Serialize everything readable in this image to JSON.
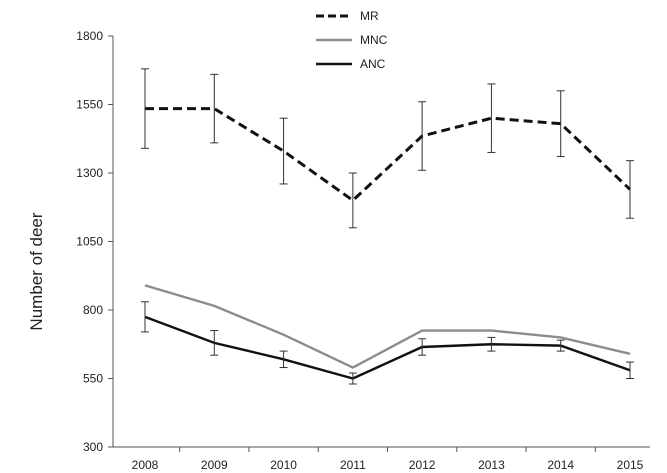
{
  "chart_data": {
    "type": "line",
    "title": "",
    "xlabel": "",
    "ylabel": "Number of deer",
    "ylim": [
      300,
      1800
    ],
    "yticks": [
      300,
      550,
      800,
      1050,
      1300,
      1550,
      1800
    ],
    "categories": [
      "2008",
      "2009",
      "2010",
      "2011",
      "2012",
      "2013",
      "2014",
      "2015"
    ],
    "grid": false,
    "legend_position": "top-center",
    "series": [
      {
        "name": "MR",
        "style": "dashed",
        "color": "#111111",
        "values": [
          1535,
          1535,
          1380,
          1200,
          1435,
          1500,
          1480,
          1240
        ],
        "error": [
          145,
          125,
          120,
          100,
          125,
          125,
          120,
          105
        ]
      },
      {
        "name": "MNC",
        "style": "solid",
        "color": "#8c8c8c",
        "values": [
          890,
          815,
          710,
          590,
          725,
          725,
          700,
          640
        ],
        "error": null
      },
      {
        "name": "ANC",
        "style": "solid",
        "color": "#111111",
        "values": [
          775,
          680,
          620,
          550,
          665,
          675,
          670,
          580
        ],
        "error": [
          55,
          45,
          30,
          20,
          30,
          25,
          20,
          30
        ]
      }
    ]
  }
}
